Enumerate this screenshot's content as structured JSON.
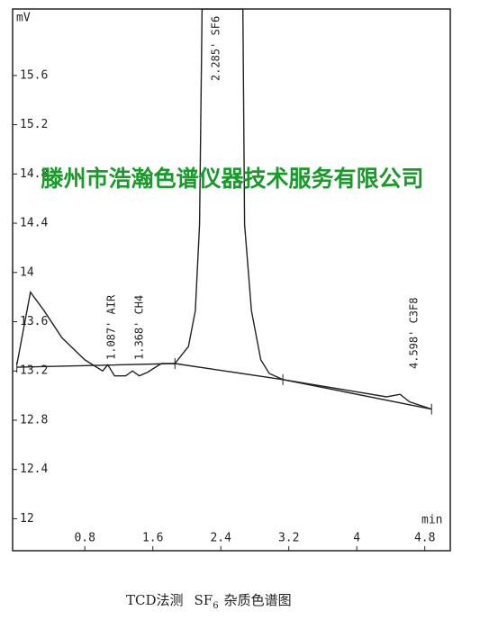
{
  "chart_data": {
    "type": "line",
    "y_label": "mV",
    "x_label": "min",
    "caption": {
      "main": "TCD法测",
      "formula": "SF",
      "subscript": "6",
      "rest": "杂质色谱图"
    },
    "watermark": "滕州市浩瀚色谱仪器技术服务有限公司",
    "xlim": [
      -0.05,
      5.1
    ],
    "ylim": [
      11.74,
      16.14
    ],
    "xticks": [
      0.8,
      1.6,
      2.4,
      3.2,
      4,
      4.8
    ],
    "yticks": [
      12,
      12.4,
      12.8,
      13.2,
      13.6,
      14,
      14.4,
      14.8,
      15.2,
      15.6
    ],
    "series": [
      {
        "name": "signal",
        "color": "#222222",
        "x": [
          0,
          0.16,
          0.32,
          0.53,
          0.8,
          1.01,
          1.07,
          1.15,
          1.28,
          1.36,
          1.44,
          1.54,
          1.7,
          1.86,
          2.02,
          2.1,
          2.15,
          2.18,
          2.66,
          2.68,
          2.76,
          2.87,
          2.97,
          3.13,
          4.35,
          4.51,
          4.62,
          4.88
        ],
        "values": [
          13.25,
          13.84,
          13.69,
          13.47,
          13.29,
          13.2,
          13.25,
          13.16,
          13.16,
          13.2,
          13.16,
          13.19,
          13.26,
          13.26,
          13.4,
          13.69,
          14.39,
          16.14,
          16.14,
          14.39,
          13.69,
          13.29,
          13.18,
          13.13,
          12.99,
          13.01,
          12.95,
          12.89
        ]
      }
    ],
    "baseline": {
      "color": "#222222",
      "x": [
        0,
        1.86,
        3.13,
        4.88
      ],
      "values": [
        13.23,
        13.26,
        13.13,
        12.89
      ]
    },
    "annotations": [
      "1.087' AIR",
      "1.368' CH4",
      "2.285' SF6",
      "4.598' C3F8"
    ]
  }
}
